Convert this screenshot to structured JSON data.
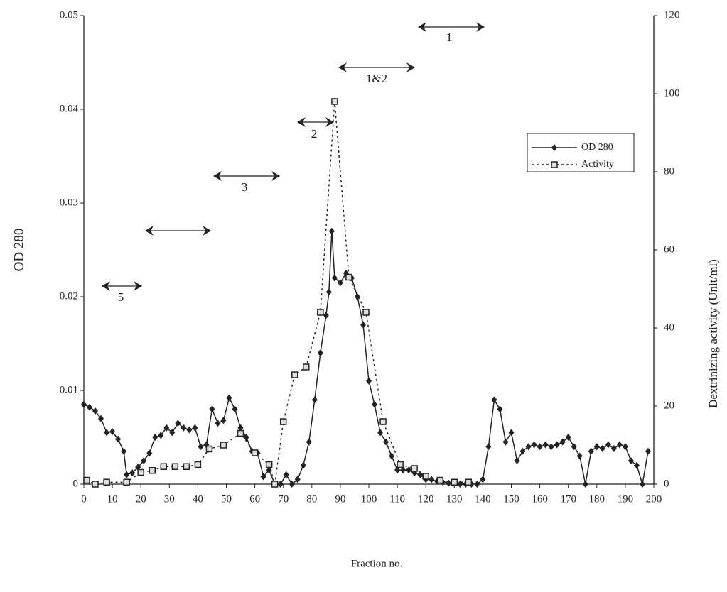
{
  "chart_data": {
    "type": "line",
    "xlabel": "Fraction no.",
    "ylabel": "OD 280",
    "y2label": "Dextrinizing activity (Unit/ml)",
    "xlim": [
      0,
      200
    ],
    "xticks": [
      0,
      10,
      20,
      30,
      40,
      50,
      60,
      70,
      80,
      90,
      100,
      110,
      120,
      130,
      140,
      150,
      160,
      170,
      180,
      190,
      200
    ],
    "ylim": [
      0,
      0.05
    ],
    "yticks": [
      0,
      0.01,
      0.02,
      0.03,
      0.04,
      0.05
    ],
    "y2lim": [
      0,
      120
    ],
    "y2ticks": [
      0,
      20,
      40,
      60,
      80,
      100,
      120
    ],
    "legend": "upper right",
    "annotations": [
      "5",
      "3",
      "2",
      "1&2",
      "1"
    ],
    "series": [
      {
        "name": "OD 280",
        "color": "#222222",
        "dash": "solid",
        "marker": "diamond",
        "axis": "y",
        "x": [
          0,
          2,
          4,
          6,
          8,
          10,
          12,
          14,
          15,
          17,
          19,
          21,
          23,
          25,
          27,
          29,
          31,
          33,
          35,
          37,
          39,
          41,
          43,
          45,
          47,
          49,
          51,
          53,
          55,
          57,
          59,
          61,
          63,
          65,
          67,
          69,
          71,
          73,
          75,
          77,
          79,
          81,
          83,
          85,
          86,
          87,
          88,
          90,
          92,
          94,
          96,
          98,
          100,
          102,
          104,
          106,
          108,
          110,
          112,
          114,
          116,
          118,
          120,
          122,
          124,
          126,
          128,
          130,
          132,
          134,
          136,
          138,
          140,
          142,
          144,
          146,
          148,
          150,
          152,
          154,
          156,
          158,
          160,
          162,
          164,
          166,
          168,
          170,
          172,
          174,
          176,
          178,
          180,
          182,
          184,
          186,
          188,
          190,
          192,
          194,
          196,
          198
        ],
        "values": [
          0.0085,
          0.0082,
          0.0078,
          0.007,
          0.0055,
          0.0056,
          0.0048,
          0.0035,
          0.001,
          0.0012,
          0.0018,
          0.0025,
          0.0033,
          0.005,
          0.0052,
          0.006,
          0.0055,
          0.0065,
          0.006,
          0.0058,
          0.006,
          0.004,
          0.0042,
          0.008,
          0.0065,
          0.0068,
          0.0092,
          0.008,
          0.006,
          0.005,
          0.0035,
          0.0033,
          0.0008,
          0.0015,
          0,
          0,
          0.001,
          0,
          0.0005,
          0.002,
          0.0045,
          0.009,
          0.014,
          0.018,
          0.0205,
          0.027,
          0.022,
          0.0215,
          0.0225,
          0.022,
          0.02,
          0.017,
          0.011,
          0.0085,
          0.0055,
          0.0045,
          0.003,
          0.0015,
          0.0015,
          0.0015,
          0.0012,
          0.001,
          0.0005,
          0.0005,
          0.0003,
          0.0002,
          0.0001,
          0.0001,
          0,
          0,
          0,
          0,
          0.0005,
          0.004,
          0.009,
          0.008,
          0.0045,
          0.0055,
          0.0025,
          0.0035,
          0.004,
          0.0042,
          0.004,
          0.0042,
          0.004,
          0.0042,
          0.0045,
          0.005,
          0.004,
          0.003,
          0,
          0.0035,
          0.004,
          0.0038,
          0.0042,
          0.0038,
          0.0042,
          0.004,
          0.0025,
          0.002,
          0,
          0.0035
        ]
      },
      {
        "name": "Activity",
        "color": "#222222",
        "dash": "dotted",
        "marker": "square",
        "axis": "y2",
        "x": [
          1,
          4,
          8,
          15,
          20,
          24,
          28,
          32,
          36,
          40,
          44,
          49,
          55,
          60,
          65,
          67,
          70,
          74,
          78,
          83,
          88,
          93,
          99,
          105,
          111,
          116,
          120,
          125,
          130,
          135
        ],
        "values": [
          1,
          0,
          0.5,
          0.5,
          3,
          3.5,
          4.5,
          4.5,
          4.5,
          5,
          9,
          10,
          13,
          8,
          5,
          0,
          16,
          28,
          30,
          44,
          98,
          53,
          44,
          16,
          5,
          4,
          2,
          1,
          0.5,
          0.5
        ]
      }
    ]
  }
}
